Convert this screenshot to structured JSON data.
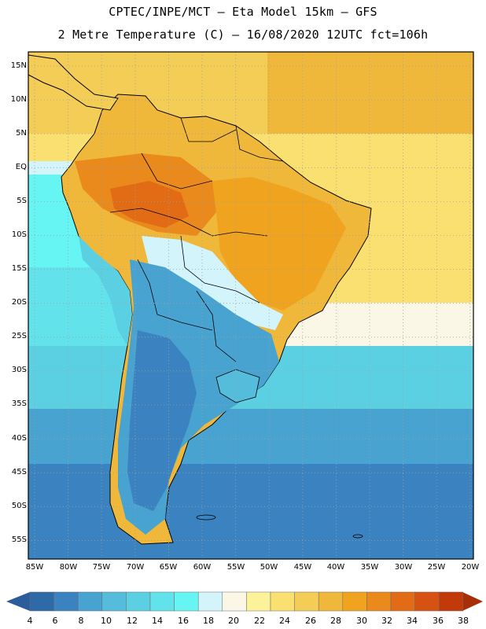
{
  "header": {
    "line1": "CPTEC/INPE/MCT –  Eta Model 15km – GFS",
    "line2": "2 Metre Temperature (C) – 16/08/2020 12UTC fct=106h"
  },
  "map": {
    "lat_labels": [
      "15N",
      "10N",
      "5N",
      "EQ",
      "5S",
      "10S",
      "15S",
      "20S",
      "25S",
      "30S",
      "35S",
      "40S",
      "45S",
      "50S",
      "55S"
    ],
    "lon_labels": [
      "85W",
      "80W",
      "75W",
      "70W",
      "65W",
      "60W",
      "55W",
      "50W",
      "45W",
      "40W",
      "35W",
      "30W",
      "25W",
      "20W"
    ]
  },
  "colorbar": {
    "labels": [
      "4",
      "6",
      "8",
      "10",
      "12",
      "14",
      "16",
      "18",
      "20",
      "22",
      "24",
      "26",
      "28",
      "30",
      "32",
      "34",
      "36",
      "38"
    ],
    "colors": [
      "#2f6aa8",
      "#3a82c0",
      "#48a3d1",
      "#55bcdc",
      "#5cd0e3",
      "#62e2ea",
      "#67f5f3",
      "#d3f4fa",
      "#fbf7e6",
      "#fbf29a",
      "#f9e070",
      "#f3cd55",
      "#efb83a",
      "#f0a31f",
      "#ea8a1c",
      "#e16c15",
      "#d55212",
      "#c23a0a"
    ],
    "under_color": "#2b5c9c",
    "over_color": "#a82e08"
  }
}
